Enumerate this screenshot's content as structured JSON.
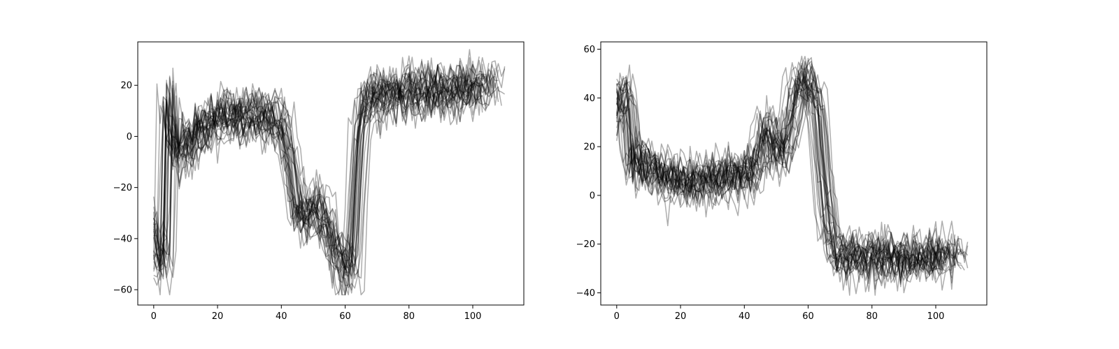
{
  "chart_data": [
    {
      "type": "line",
      "title": "",
      "xlabel": "",
      "ylabel": "",
      "xlim": [
        -5,
        116
      ],
      "ylim": [
        -66,
        37
      ],
      "xticks": [
        0,
        20,
        40,
        60,
        80,
        100
      ],
      "yticks": [
        -60,
        -40,
        -20,
        0,
        20
      ],
      "xtick_labels": [
        "0",
        "20",
        "40",
        "60",
        "80",
        "100"
      ],
      "ytick_labels": [
        "−60",
        "−40",
        "−20",
        "0",
        "20"
      ],
      "grid": false,
      "line_color": "#000000",
      "line_opacity": 0.32,
      "series_count": 30,
      "mean_profile": {
        "x": [
          0,
          1,
          2,
          3,
          3.6,
          4.2,
          5,
          6,
          8,
          12,
          20,
          30,
          38,
          41,
          43,
          45,
          48,
          52,
          56,
          59,
          62,
          63,
          64,
          65,
          66,
          68,
          72,
          80,
          90,
          100,
          104
        ],
        "y": [
          -36,
          -44,
          -48,
          -49,
          -45,
          20,
          14,
          -2,
          -4,
          2,
          8,
          9,
          8,
          3,
          -12,
          -30,
          -30,
          -27,
          -40,
          -50,
          -52,
          -30,
          -5,
          8,
          14,
          16,
          17,
          18,
          19,
          20,
          21
        ]
      }
    },
    {
      "type": "line",
      "title": "",
      "xlabel": "",
      "ylabel": "",
      "xlim": [
        -5,
        116
      ],
      "ylim": [
        -45,
        63
      ],
      "xticks": [
        0,
        20,
        40,
        60,
        80,
        100
      ],
      "yticks": [
        -40,
        -20,
        0,
        20,
        40,
        60
      ],
      "xtick_labels": [
        "0",
        "20",
        "40",
        "60",
        "80",
        "100"
      ],
      "ytick_labels": [
        "−40",
        "−20",
        "0",
        "20",
        "40",
        "60"
      ],
      "grid": false,
      "line_color": "#000000",
      "line_opacity": 0.32,
      "series_count": 30,
      "mean_profile": {
        "x": [
          0,
          1,
          2,
          3,
          4,
          5,
          6,
          8,
          12,
          20,
          30,
          40,
          44,
          47,
          49,
          51,
          54,
          57,
          59,
          61,
          63,
          64,
          66,
          68,
          70,
          74,
          80,
          90,
          100,
          104
        ],
        "y": [
          34,
          40,
          44,
          42,
          28,
          5,
          18,
          14,
          8,
          5,
          6,
          8,
          12,
          28,
          22,
          15,
          25,
          45,
          48,
          44,
          35,
          18,
          -10,
          -20,
          -25,
          -26,
          -26,
          -26,
          -26,
          -25
        ]
      }
    }
  ]
}
